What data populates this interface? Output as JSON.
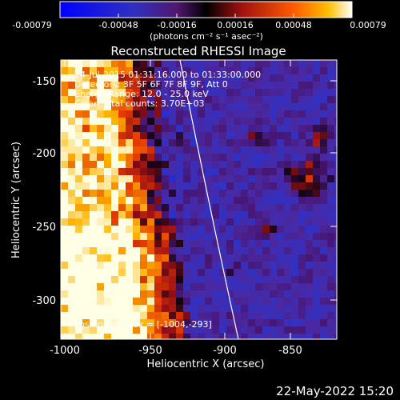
{
  "colorbar": {
    "ticks": [
      "-0.00079",
      "-0.00048",
      "-0.00016",
      "0.00016",
      "0.00048",
      "0.00079"
    ],
    "units": "(photons cm⁻² s⁻¹ asec⁻²)"
  },
  "plot": {
    "title": "Reconstructed RHESSI Image",
    "xlabel": "Heliocentric X (arcsec)",
    "ylabel": "Heliocentric Y (arcsec)",
    "xticks": [
      "-1000",
      "-950",
      "-900",
      "-850"
    ],
    "yticks": [
      "-150",
      "-200",
      "-250",
      "-300"
    ],
    "xlim": [
      -1003,
      -817
    ],
    "ylim": [
      -325,
      -137
    ]
  },
  "annotations": {
    "time": "24-Jul-2015 01:31:16.000 to 01:33:00.000",
    "detectors": "Detectors: 3F 5F 6F 7F 8F 9F, Att 0",
    "energy": "Energy Range: 12.0 - 25.0 keV",
    "clean": "Clean    Total counts: 3.70E+03",
    "position": "Position of Peak = [-1004,-293]"
  },
  "footer": {
    "date": "22-May-2022 15:20"
  }
}
